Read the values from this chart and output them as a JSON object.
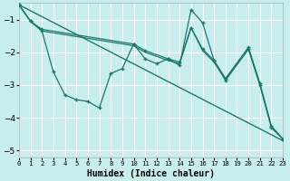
{
  "xlabel": "Humidex (Indice chaleur)",
  "bg_color": "#c8eded",
  "line_color": "#1a7a6a",
  "grid_color": "#ffffff",
  "xlim": [
    0,
    23
  ],
  "ylim": [
    -5.2,
    -0.5
  ],
  "yticks": [
    -5,
    -4,
    -3,
    -2,
    -1
  ],
  "xticks": [
    0,
    1,
    2,
    3,
    4,
    5,
    6,
    7,
    8,
    9,
    10,
    11,
    12,
    13,
    14,
    15,
    16,
    17,
    18,
    19,
    20,
    21,
    22,
    23
  ],
  "series_trend": {
    "x": [
      0,
      23
    ],
    "y": [
      -0.55,
      -4.7
    ]
  },
  "series_upper": {
    "x": [
      0,
      1,
      2,
      10,
      11,
      13,
      14,
      15,
      16,
      17,
      18,
      20,
      21,
      22,
      23
    ],
    "y": [
      -0.55,
      -1.05,
      -1.3,
      -1.75,
      -1.95,
      -2.2,
      -2.3,
      -1.25,
      -1.9,
      -2.25,
      -2.8,
      -1.85,
      -2.95,
      -4.25,
      -4.65
    ]
  },
  "series_upper2": {
    "x": [
      0,
      1,
      2,
      10,
      11,
      13,
      14,
      15,
      16,
      17,
      18,
      20,
      21,
      22,
      23
    ],
    "y": [
      -0.55,
      -1.05,
      -1.35,
      -1.8,
      -2.0,
      -2.25,
      -2.35,
      -1.25,
      -1.95,
      -2.3,
      -2.85,
      -1.9,
      -3.0,
      -4.3,
      -4.65
    ]
  },
  "series_lower": {
    "x": [
      0,
      1,
      2,
      3,
      4,
      5,
      6,
      7,
      8,
      9,
      10,
      11,
      12,
      13,
      14,
      15,
      16,
      17,
      18,
      20,
      21,
      22,
      23
    ],
    "y": [
      -0.55,
      -1.05,
      -1.35,
      -2.6,
      -3.3,
      -3.45,
      -3.5,
      -3.7,
      -2.65,
      -2.5,
      -1.75,
      -2.2,
      -2.35,
      -2.2,
      -2.4,
      -0.7,
      -1.1,
      -2.25,
      -2.85,
      -1.9,
      -3.0,
      -4.3,
      -4.65
    ]
  }
}
